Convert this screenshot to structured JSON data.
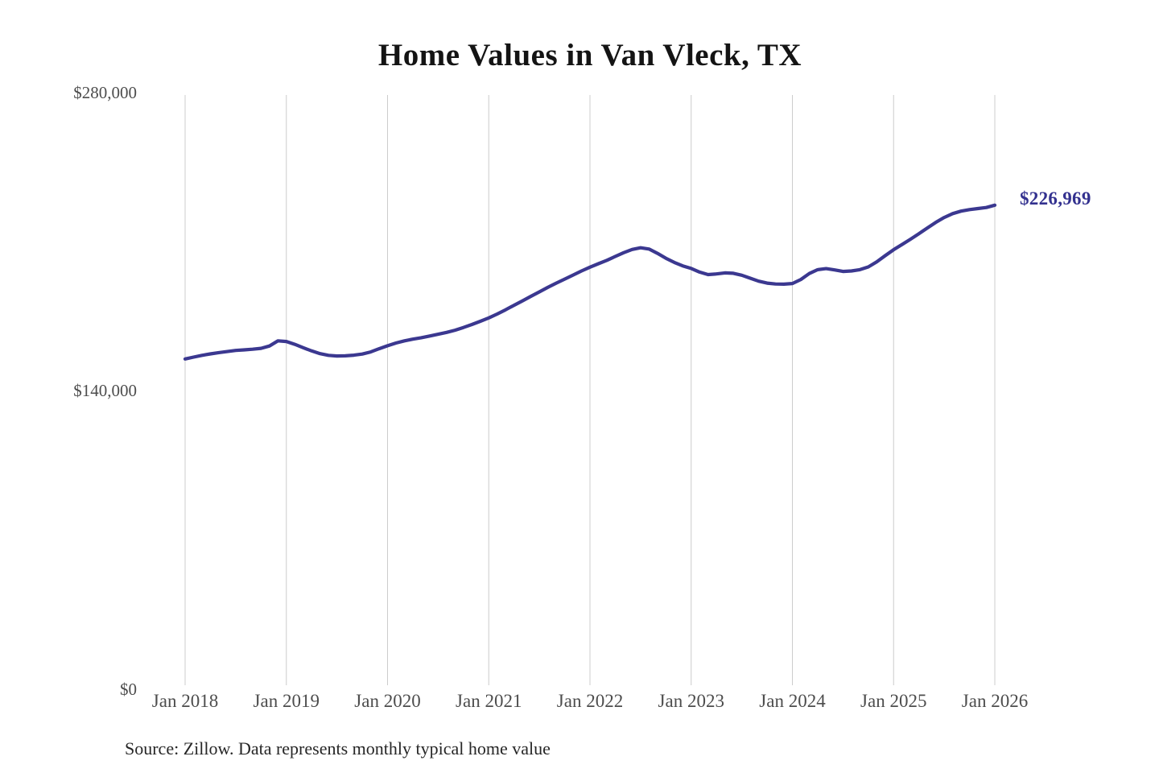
{
  "chart": {
    "title": "Home Values in Van Vleck, TX",
    "end_label": "$226,969",
    "source_note": "Source: Zillow. Data represents monthly typical home value",
    "colors": {
      "line": "#3b3890",
      "end_label": "#33318f",
      "gridline": "#cccccc",
      "axis_text": "#4d4d4d",
      "title_text": "#141414",
      "source_text": "#262626",
      "background": "#ffffff"
    }
  },
  "chart_data": {
    "type": "line",
    "title": "Home Values in Van Vleck, TX",
    "series_name": "Monthly typical home value",
    "legend": "none",
    "grid": "vertical-only",
    "ylim": [
      0,
      280000
    ],
    "y_ticks": [
      0,
      140000,
      280000
    ],
    "y_tick_labels": [
      "$0",
      "$140,000",
      "$280,000"
    ],
    "x_tick_labels": [
      "Jan 2018",
      "Jan 2019",
      "Jan 2020",
      "Jan 2021",
      "Jan 2022",
      "Jan 2023",
      "Jan 2024",
      "Jan 2025",
      "Jan 2026"
    ],
    "final_value": 226969,
    "final_value_label": "$226,969",
    "x": [
      "2018-01",
      "2018-02",
      "2018-03",
      "2018-04",
      "2018-05",
      "2018-06",
      "2018-07",
      "2018-08",
      "2018-09",
      "2018-10",
      "2018-11",
      "2018-12",
      "2019-01",
      "2019-02",
      "2019-03",
      "2019-04",
      "2019-05",
      "2019-06",
      "2019-07",
      "2019-08",
      "2019-09",
      "2019-10",
      "2019-11",
      "2019-12",
      "2020-01",
      "2020-02",
      "2020-03",
      "2020-04",
      "2020-05",
      "2020-06",
      "2020-07",
      "2020-08",
      "2020-09",
      "2020-10",
      "2020-11",
      "2020-12",
      "2021-01",
      "2021-02",
      "2021-03",
      "2021-04",
      "2021-05",
      "2021-06",
      "2021-07",
      "2021-08",
      "2021-09",
      "2021-10",
      "2021-11",
      "2021-12",
      "2022-01",
      "2022-02",
      "2022-03",
      "2022-04",
      "2022-05",
      "2022-06",
      "2022-07",
      "2022-08",
      "2022-09",
      "2022-10",
      "2022-11",
      "2022-12",
      "2023-01",
      "2023-02",
      "2023-03",
      "2023-04",
      "2023-05",
      "2023-06",
      "2023-07",
      "2023-08",
      "2023-09",
      "2023-10",
      "2023-11",
      "2023-12",
      "2024-01",
      "2024-02",
      "2024-03",
      "2024-04",
      "2024-05",
      "2024-06",
      "2024-07",
      "2024-08",
      "2024-09",
      "2024-10",
      "2024-11",
      "2024-12",
      "2025-01",
      "2025-02",
      "2025-03",
      "2025-04",
      "2025-05",
      "2025-06",
      "2025-07",
      "2025-08",
      "2025-09",
      "2025-10",
      "2025-11",
      "2025-12",
      "2026-01"
    ],
    "values": [
      154800,
      155700,
      156500,
      157200,
      157800,
      158300,
      158800,
      159100,
      159400,
      159800,
      160900,
      163300,
      163000,
      161700,
      160100,
      158600,
      157300,
      156500,
      156200,
      156300,
      156600,
      157100,
      158100,
      159600,
      161000,
      162300,
      163300,
      164100,
      164800,
      165600,
      166400,
      167300,
      168300,
      169600,
      171000,
      172500,
      174100,
      175900,
      177900,
      180000,
      182100,
      184200,
      186300,
      188400,
      190400,
      192300,
      194200,
      196100,
      197900,
      199500,
      201100,
      202900,
      204700,
      206200,
      207000,
      206400,
      204400,
      202100,
      200100,
      198500,
      197300,
      195600,
      194400,
      194700,
      195200,
      195000,
      194100,
      192700,
      191300,
      190400,
      190000,
      189900,
      190200,
      192100,
      194900,
      196700,
      197200,
      196600,
      195900,
      196100,
      196700,
      198000,
      200400,
      203300,
      206100,
      208500,
      211000,
      213600,
      216300,
      218900,
      221200,
      223000,
      224200,
      224900,
      225400,
      225900,
      226969
    ]
  }
}
